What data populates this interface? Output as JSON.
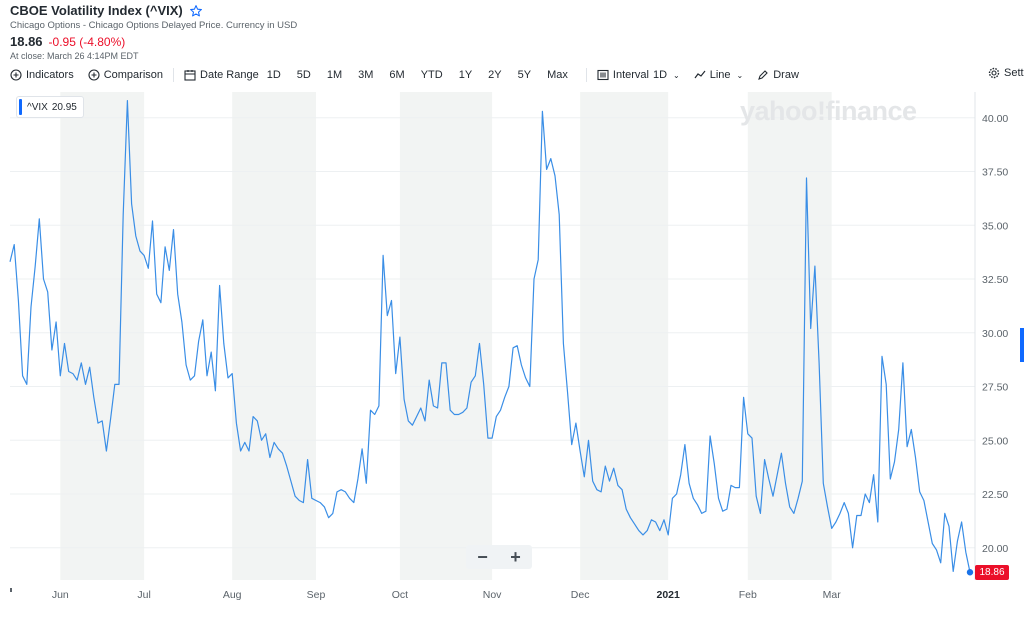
{
  "header": {
    "title": "CBOE Volatility Index (^VIX)",
    "subtitle": "Chicago Options - Chicago Options Delayed Price. Currency in USD",
    "price": "18.86",
    "change": "-0.95 (-4.80%)",
    "close_time": "At close: March 26 4:14PM EDT"
  },
  "toolbar": {
    "indicators": "Indicators",
    "comparison": "Comparison",
    "date_range": "Date Range",
    "ranges": [
      "1D",
      "5D",
      "1M",
      "3M",
      "6M",
      "YTD",
      "1Y",
      "2Y",
      "5Y",
      "Max"
    ],
    "interval_label": "Interval",
    "interval_value": "1D",
    "line_label": "Line",
    "draw_label": "Draw",
    "settings_label": "Setti"
  },
  "legend": {
    "symbol": "^VIX",
    "value": "20.95"
  },
  "watermark": "yahoo!finance",
  "price_tag": "18.86",
  "zoom": {
    "minus": "−",
    "plus": "+"
  },
  "colors": {
    "line": "#3a8ee6",
    "negative": "#eb0f29",
    "accent": "#0f69ff",
    "band": "#f2f4f3"
  },
  "chart_data": {
    "type": "line",
    "series": [
      {
        "name": "^VIX",
        "values": [
          33.3,
          34.1,
          31.5,
          28.0,
          27.6,
          31.2,
          33.1,
          35.3,
          32.5,
          31.9,
          29.2,
          30.5,
          28.0,
          29.5,
          28.2,
          28.1,
          27.8,
          28.6,
          27.6,
          28.4,
          27.0,
          25.8,
          25.9,
          24.5,
          26.0,
          27.6,
          27.6,
          35.5,
          40.8,
          36.0,
          34.5,
          33.8,
          33.6,
          33.0,
          35.2,
          31.8,
          31.4,
          34.0,
          32.9,
          34.8,
          31.8,
          30.5,
          28.5,
          27.8,
          28.0,
          29.6,
          30.6,
          28.0,
          29.1,
          27.3,
          32.2,
          29.5,
          27.9,
          28.1,
          25.8,
          24.5,
          24.9,
          24.5,
          26.1,
          25.9,
          25.0,
          25.3,
          24.2,
          24.9,
          24.6,
          24.4,
          23.8,
          23.1,
          22.4,
          22.2,
          22.1,
          24.1,
          22.3,
          22.2,
          22.1,
          21.9,
          21.4,
          21.6,
          22.6,
          22.7,
          22.6,
          22.3,
          22.1,
          23.2,
          24.6,
          23.0,
          26.4,
          26.2,
          26.6,
          33.6,
          30.8,
          31.5,
          28.1,
          29.8,
          26.9,
          25.9,
          25.7,
          26.1,
          26.5,
          25.9,
          27.8,
          26.6,
          26.5,
          28.6,
          28.6,
          26.4,
          26.2,
          26.2,
          26.3,
          26.5,
          27.7,
          28.0,
          29.5,
          27.6,
          25.1,
          25.1,
          26.1,
          26.4,
          27.0,
          27.5,
          29.3,
          29.4,
          28.5,
          27.9,
          27.5,
          32.5,
          33.4,
          40.3,
          37.6,
          38.1,
          37.3,
          35.5,
          29.5,
          27.2,
          24.8,
          25.8,
          24.5,
          23.3,
          25.0,
          23.1,
          22.7,
          22.6,
          23.8,
          23.1,
          23.7,
          22.9,
          22.7,
          21.8,
          21.4,
          21.1,
          20.8,
          20.6,
          20.8,
          21.3,
          21.2,
          20.8,
          21.3,
          20.6,
          22.3,
          22.5,
          23.4,
          24.8,
          23.0,
          22.3,
          22.0,
          21.6,
          21.7,
          25.2,
          23.9,
          22.3,
          21.7,
          21.8,
          22.9,
          22.8,
          22.8,
          27.0,
          25.3,
          25.1,
          22.4,
          21.6,
          24.1,
          23.2,
          22.4,
          23.4,
          24.4,
          23.0,
          21.9,
          21.6,
          22.3,
          23.1,
          37.2,
          30.2,
          33.1,
          28.6,
          23.0,
          21.9,
          20.9,
          21.2,
          21.6,
          22.1,
          21.6,
          20.0,
          21.5,
          21.5,
          22.5,
          22.1,
          23.4,
          21.2,
          28.9,
          27.6,
          23.2,
          24.0,
          25.5,
          28.6,
          24.7,
          25.5,
          24.2,
          22.6,
          22.2,
          21.2,
          20.2,
          19.9,
          19.3,
          21.6,
          21.0,
          18.9,
          20.3,
          21.2,
          19.8,
          18.86
        ]
      }
    ],
    "x_ticks": [
      "Jun",
      "Jul",
      "Aug",
      "Sep",
      "Oct",
      "Nov",
      "Dec",
      "2021",
      "Feb",
      "Mar"
    ],
    "x_tick_indices": [
      12,
      32,
      53,
      73,
      93,
      115,
      136,
      157,
      176,
      196
    ],
    "y_ticks": [
      "20.00",
      "22.50",
      "25.00",
      "27.50",
      "30.00",
      "32.50",
      "35.00",
      "37.50",
      "40.00"
    ],
    "ylim": [
      18.5,
      41.2
    ],
    "shaded_bands": [
      [
        12,
        32
      ],
      [
        53,
        73
      ],
      [
        93,
        115
      ],
      [
        136,
        157
      ],
      [
        176,
        196
      ]
    ],
    "last_value": 18.86
  }
}
